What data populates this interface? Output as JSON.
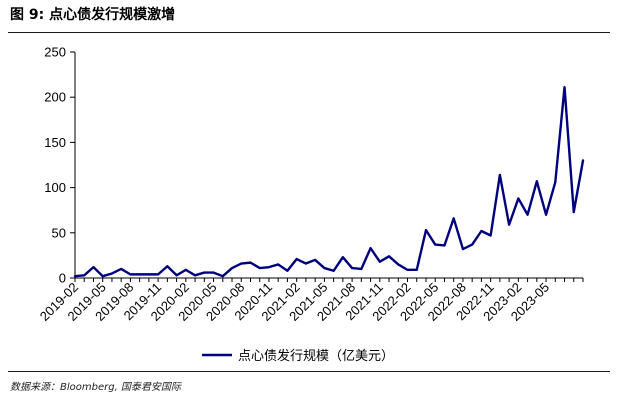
{
  "figure": {
    "title": "图 9:  点心债发行规模激增",
    "source": "数据来源：Bloomberg, 国泰君安国际"
  },
  "colors": {
    "series": "#00007f",
    "axis": "#000000",
    "text": "#000000"
  },
  "chart_data": {
    "type": "line",
    "title": "",
    "xlabel": "",
    "ylabel": "",
    "ylim": [
      0,
      250
    ],
    "yticks": [
      0,
      50,
      100,
      150,
      200,
      250
    ],
    "grid": false,
    "legend_position": "bottom",
    "x_tick_labels": [
      "2019-02",
      "2019-05",
      "2019-08",
      "2019-11",
      "2020-02",
      "2020-05",
      "2020-08",
      "2020-11",
      "2021-02",
      "2021-05",
      "2021-08",
      "2021-11",
      "2022-02",
      "2022-05",
      "2022-08",
      "2022-11",
      "2023-02",
      "2023-05"
    ],
    "x": [
      "2019-02",
      "2019-03",
      "2019-04",
      "2019-05",
      "2019-06",
      "2019-07",
      "2019-08",
      "2019-09",
      "2019-10",
      "2019-11",
      "2019-12",
      "2020-01",
      "2020-02",
      "2020-03",
      "2020-04",
      "2020-05",
      "2020-06",
      "2020-07",
      "2020-08",
      "2020-09",
      "2020-10",
      "2020-11",
      "2020-12",
      "2021-01",
      "2021-02",
      "2021-03",
      "2021-04",
      "2021-05",
      "2021-06",
      "2021-07",
      "2021-08",
      "2021-09",
      "2021-10",
      "2021-11",
      "2021-12",
      "2022-01",
      "2022-02",
      "2022-03",
      "2022-04",
      "2022-05",
      "2022-06",
      "2022-07",
      "2022-08",
      "2022-09",
      "2022-10",
      "2022-11",
      "2022-12",
      "2023-01",
      "2023-02",
      "2023-03",
      "2023-04",
      "2023-05",
      "2023-06",
      "2023-07",
      "2023-08",
      "2023-09"
    ],
    "series": [
      {
        "name": "点心债发行规模（亿美元）",
        "values": [
          2,
          3,
          12,
          2,
          5,
          10,
          4,
          4,
          4,
          4,
          13,
          3,
          9,
          3,
          6,
          6,
          2,
          11,
          16,
          17,
          11,
          12,
          15,
          8,
          21,
          16,
          20,
          11,
          8,
          23,
          11,
          10,
          33,
          18,
          24,
          15,
          9,
          9,
          53,
          37,
          36,
          66,
          32,
          37,
          52,
          47,
          114,
          59,
          88,
          70,
          107,
          70,
          106,
          211,
          73,
          130
        ]
      }
    ]
  }
}
